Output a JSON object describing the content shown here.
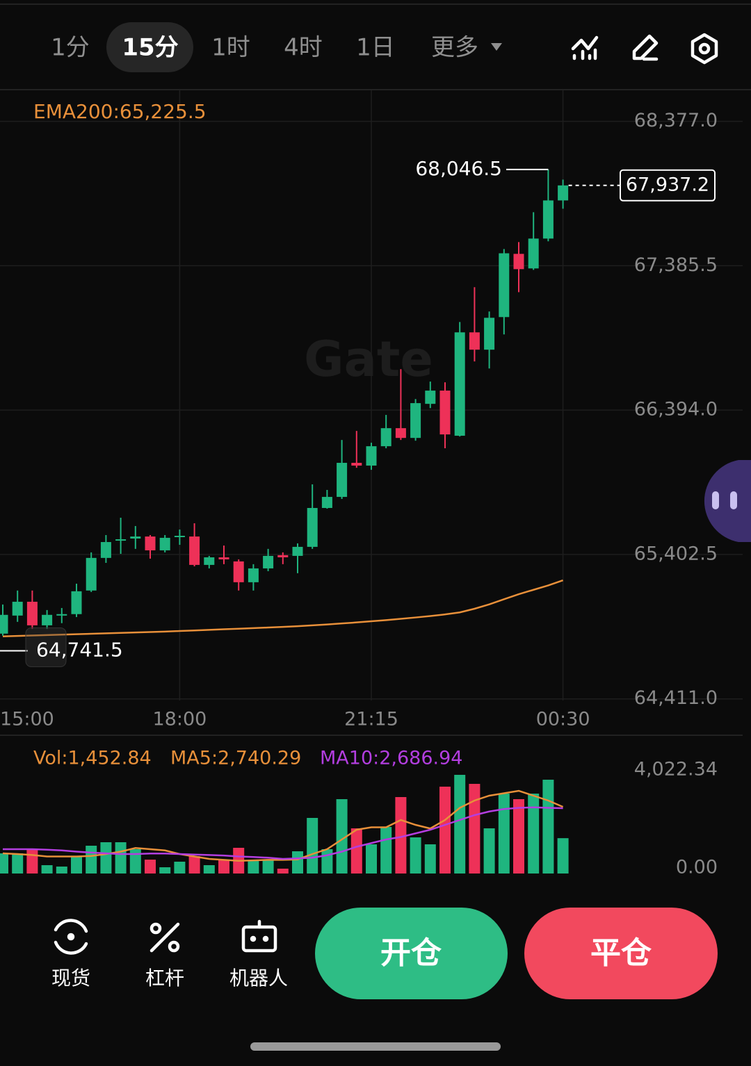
{
  "tabs": [
    "1分",
    "15分",
    "1时",
    "4时",
    "1日",
    "更多"
  ],
  "chart_data": [
    {
      "type": "candlestick",
      "watermark": "Gate",
      "categories": [
        "15:00",
        null,
        null,
        null,
        null,
        null,
        null,
        null,
        null,
        null,
        null,
        null,
        "18:00",
        null,
        null,
        null,
        null,
        null,
        null,
        null,
        null,
        null,
        null,
        null,
        null,
        "21:15",
        null,
        null,
        null,
        null,
        null,
        null,
        null,
        null,
        null,
        null,
        null,
        null,
        "00:30"
      ],
      "open": [
        64859,
        64983,
        65078,
        64916,
        64983,
        64993,
        65155,
        65379,
        65498,
        65512,
        65526,
        65431,
        65522,
        65526,
        65331,
        65383,
        65355,
        65212,
        65307,
        65398,
        65393,
        65455,
        65722,
        65798,
        66032,
        66013,
        66146,
        66270,
        66203,
        66437,
        66528,
        66218,
        66928,
        66809,
        67033,
        67467,
        67367,
        67572,
        67834
      ],
      "close": [
        64988,
        65078,
        64916,
        64988,
        64993,
        65150,
        65379,
        65488,
        65507,
        65526,
        65431,
        65517,
        65531,
        65331,
        65383,
        65369,
        65212,
        65307,
        65393,
        65383,
        65455,
        65722,
        65798,
        66032,
        66013,
        66146,
        66270,
        66203,
        66442,
        66528,
        66227,
        66928,
        66809,
        67028,
        67471,
        67362,
        67572,
        67834,
        67937.2
      ],
      "high": [
        65059,
        65155,
        65155,
        65021,
        65035,
        65202,
        65417,
        65536,
        65655,
        65598,
        65536,
        65536,
        65574,
        65617,
        65393,
        65464,
        65369,
        65336,
        65441,
        65417,
        65479,
        65884,
        65846,
        66189,
        66251,
        66170,
        66361,
        66675,
        66470,
        66590,
        66585,
        66999,
        67238,
        67071,
        67500,
        67548,
        67753,
        68046.5,
        67977
      ],
      "low": [
        64845,
        64940,
        64892,
        64892,
        64931,
        64973,
        65145,
        65345,
        65407,
        65441,
        65374,
        65417,
        65469,
        65321,
        65307,
        65336,
        65155,
        65155,
        65288,
        65336,
        65274,
        65441,
        65717,
        65784,
        65998,
        65984,
        66132,
        66189,
        66184,
        66408,
        66132,
        66213,
        66728,
        66680,
        66914,
        67204,
        67357,
        67553,
        67777
      ],
      "up_color": "#1fb57f",
      "down_color": "#ee3158",
      "series": [
        {
          "name": "EMA200:65,225.5",
          "color": "#e8903a",
          "values": [
            64840,
            64843,
            64846,
            64849,
            64852,
            64855,
            64858,
            64861,
            64864,
            64867,
            64870,
            64873,
            64877,
            64881,
            64885,
            64889,
            64893,
            64897,
            64901,
            64905,
            64910,
            64916,
            64922,
            64929,
            64936,
            64944,
            64952,
            64961,
            64970,
            64980,
            64991,
            65005,
            65030,
            65060,
            65095,
            65130,
            65160,
            65190,
            65225.5
          ]
        }
      ],
      "annotations": {
        "high": {
          "value": 68046.5,
          "label": "68,046.5"
        },
        "low": {
          "value": 64741.5,
          "label": "64,741.5"
        },
        "last": {
          "value": 67937.2,
          "label": "67,937.2"
        }
      },
      "ylim": [
        64400,
        68590
      ],
      "yticks": [
        {
          "value": 64411,
          "label": "64,411.0"
        },
        {
          "value": 65402.5,
          "label": "65,402.5"
        },
        {
          "value": 66394,
          "label": "66,394.0"
        },
        {
          "value": 67385.5,
          "label": "67,385.5"
        },
        {
          "value": 68377,
          "label": "68,377.0"
        }
      ],
      "grid": true
    },
    {
      "type": "bar",
      "label": "Vol:1,452.84",
      "values": [
        829,
        829,
        1000,
        343,
        286,
        714,
        1143,
        1286,
        1286,
        1000,
        571,
        257,
        486,
        714,
        343,
        571,
        1057,
        571,
        571,
        200,
        914,
        2286,
        1000,
        3057,
        1857,
        1200,
        1914,
        3143,
        1486,
        1200,
        3571,
        4057,
        3686,
        1857,
        3286,
        3057,
        3286,
        3857,
        1452.84
      ],
      "series": [
        {
          "name": "MA5:2,740.29",
          "color": "#e8903a",
          "values": [
            829,
            800,
            760,
            700,
            700,
            700,
            720,
            800,
            900,
            1050,
            1000,
            950,
            800,
            700,
            600,
            560,
            520,
            540,
            560,
            560,
            580,
            800,
            1000,
            1400,
            1800,
            1900,
            1900,
            2200,
            2000,
            1850,
            2200,
            2700,
            3000,
            3200,
            3300,
            3400,
            3200,
            3000,
            2740.29
          ]
        },
        {
          "name": "MA10:2,686.94",
          "color": "#b33ee0",
          "values": [
            1000,
            1000,
            1000,
            980,
            950,
            900,
            860,
            830,
            800,
            800,
            820,
            820,
            800,
            780,
            760,
            740,
            700,
            680,
            650,
            600,
            620,
            650,
            750,
            900,
            1100,
            1250,
            1400,
            1500,
            1650,
            1800,
            2000,
            2200,
            2400,
            2550,
            2650,
            2700,
            2720,
            2700,
            2686.94
          ]
        }
      ],
      "ylim": [
        0,
        4200
      ],
      "yticks": [
        {
          "value": 0,
          "label": "0.00"
        },
        {
          "value": 4022.34,
          "label": "4,022.34"
        }
      ]
    }
  ],
  "bottom_bar": {
    "items": [
      "现货",
      "杠杆",
      "机器人"
    ],
    "open": "开仓",
    "close": "平仓"
  }
}
